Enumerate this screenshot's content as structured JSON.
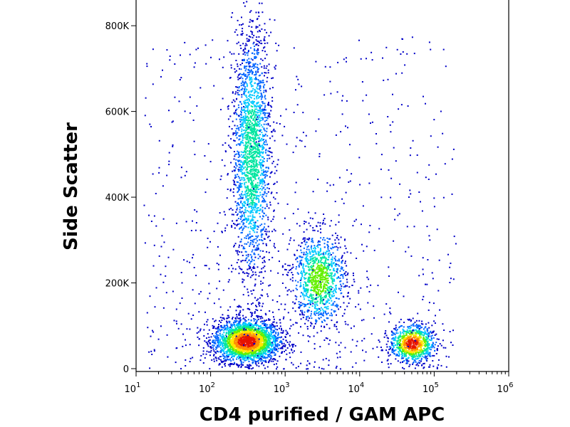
{
  "chart_data": {
    "type": "scatter",
    "title": "",
    "xlabel": "CD4 purified / GAM APC",
    "ylabel": "Side Scatter",
    "x_scale": "log",
    "xlim": [
      10,
      1000000
    ],
    "ylim": [
      0,
      860000
    ],
    "x_ticks": [
      {
        "value": 10,
        "base": "10",
        "exp": "1"
      },
      {
        "value": 100,
        "base": "10",
        "exp": "2"
      },
      {
        "value": 1000,
        "base": "10",
        "exp": "3"
      },
      {
        "value": 10000,
        "base": "10",
        "exp": "4"
      },
      {
        "value": 100000,
        "base": "10",
        "exp": "5"
      },
      {
        "value": 1000000,
        "base": "10",
        "exp": "6"
      }
    ],
    "y_ticks": [
      {
        "value": 0,
        "label": "0"
      },
      {
        "value": 200000,
        "label": "200K"
      },
      {
        "value": 400000,
        "label": "400K"
      },
      {
        "value": 600000,
        "label": "600K"
      },
      {
        "value": 800000,
        "label": "800K"
      }
    ],
    "grid": false,
    "legend": "none",
    "colormap": [
      "#0000c8",
      "#0064ff",
      "#00c8ff",
      "#00e6a0",
      "#64f000",
      "#ffe600",
      "#ff8c00",
      "#e61400"
    ],
    "populations": [
      {
        "x_center": 300,
        "y_center": 65000,
        "x_spread_decades": 0.22,
        "y_spread": 25000,
        "count": 2600,
        "peak_color": "#e61400"
      },
      {
        "x_center": 350,
        "y_center": 500000,
        "x_spread_decades": 0.13,
        "y_spread": 150000,
        "count": 2100,
        "peak_color": "#00e6a0"
      },
      {
        "x_center": 2800,
        "y_center": 210000,
        "x_spread_decades": 0.18,
        "y_spread": 55000,
        "count": 1100,
        "peak_color": "#64f000"
      },
      {
        "x_center": 50000,
        "y_center": 60000,
        "x_spread_decades": 0.15,
        "y_spread": 22000,
        "count": 900,
        "peak_color": "#e61400"
      }
    ]
  }
}
